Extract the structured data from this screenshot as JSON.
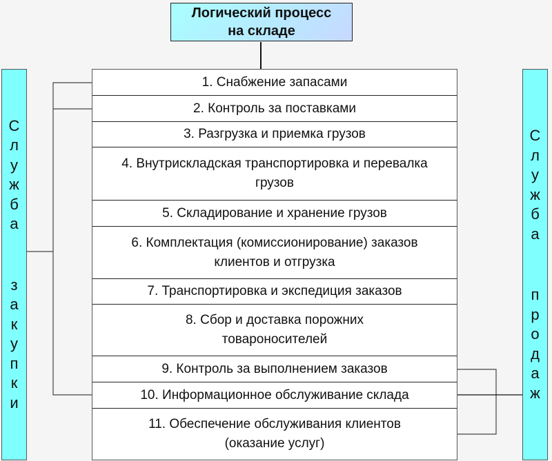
{
  "title": "Логический процесс на складе",
  "left_column": "Служба закупки",
  "right_column": "Служба продаж",
  "steps": [
    "1. Снабжение запасами",
    "2. Контроль за поставками",
    "3. Разгрузка и приемка грузов",
    "4. Внутрискладская транспортировка и перевалка грузов",
    "5. Складирование и хранение грузов",
    "6. Комплектация (комиссионирование) заказов клиентов и отгрузка",
    "7. Транспортировка и экспедиция заказов",
    "8. Сбор и доставка порожних товароносителей",
    "9. Контроль за выполнением заказов",
    "10. Информационное обслуживание склада",
    "11. Обеспечение обслуживания клиентов (оказание услуг)"
  ],
  "colors": {
    "side_fill": "#80ffff",
    "title_fill": "#b0f0ff",
    "background": "#f5f5f5"
  }
}
